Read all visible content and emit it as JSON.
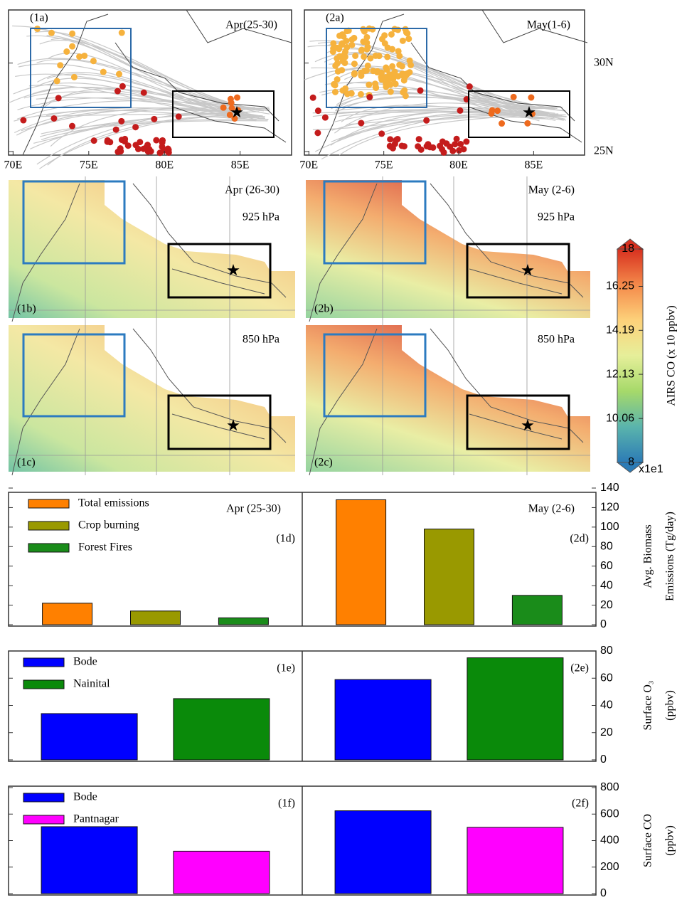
{
  "chart_data": [
    {
      "type": "map",
      "panels": [
        {
          "label": "(1a)",
          "period": "Apr(25-30)"
        },
        {
          "label": "(2a)",
          "period": "May(1-6)"
        }
      ],
      "xlim": [
        69.7,
        88.4
      ],
      "xticks": [
        {
          "value": 70,
          "label": "70E"
        },
        {
          "value": 75,
          "label": "75E"
        },
        {
          "value": 80,
          "label": "80E"
        },
        {
          "value": 85,
          "label": "85E"
        }
      ],
      "ylim": [
        24.8,
        33
      ],
      "yticks": [
        {
          "value": 30,
          "label": "30N"
        },
        {
          "value": 25,
          "label": "25N"
        }
      ]
    },
    {
      "type": "heatmap",
      "panels": [
        {
          "label": "(1b)",
          "period": "Apr (26-30)",
          "level": "925 hPa"
        },
        {
          "label": "(2b)",
          "period": "May (2-6)",
          "level": "925 hPa"
        }
      ]
    },
    {
      "type": "heatmap",
      "panels": [
        {
          "label": "(1c)",
          "level": "850 hPa"
        },
        {
          "label": "(2c)",
          "level": "850 hPa"
        }
      ]
    },
    {
      "type": "colorbar",
      "title": "AIRS CO (x 10 ppbv)",
      "multiplier": "x1e1",
      "lim": [
        8,
        18
      ],
      "ticks": [
        8,
        10.06,
        12.13,
        14.19,
        16.25,
        18
      ],
      "colors": [
        "#2c7bb6",
        "#5ab4ac",
        "#a6d96a",
        "#e6ef9a",
        "#fdd17a",
        "#f4894a",
        "#d7301f"
      ]
    },
    {
      "type": "bar",
      "categories": [
        "Apr (25-30)",
        "May (2-6)"
      ],
      "panel_labels": [
        "(1d)",
        "(2d)"
      ],
      "series": [
        {
          "name": "Total emissions",
          "color": "#ff8000",
          "values": [
            22,
            128
          ]
        },
        {
          "name": "Crop burning",
          "color": "#999900",
          "values": [
            14,
            98
          ]
        },
        {
          "name": "Forest Fires",
          "color": "#1a8c1a",
          "values": [
            7,
            30
          ]
        }
      ],
      "ylabel": [
        "Avg. Biomass",
        "Emissions (Tg/day)"
      ],
      "ylim": [
        0,
        140
      ],
      "yticks": [
        0,
        20,
        40,
        60,
        80,
        100,
        120,
        140
      ]
    },
    {
      "type": "bar",
      "panel_labels": [
        "(1e)",
        "(2e)"
      ],
      "series": [
        {
          "name": "Bode",
          "color": "#0000ff",
          "values": [
            34,
            59
          ]
        },
        {
          "name": "Nainital",
          "color": "#0a8a0a",
          "values": [
            45,
            75
          ]
        }
      ],
      "ylabel": [
        "Surface O₃",
        "(ppbv)"
      ],
      "ylim": [
        0,
        80
      ],
      "yticks": [
        0,
        20,
        40,
        60,
        80
      ]
    },
    {
      "type": "bar",
      "panel_labels": [
        "(1f)",
        "(2f)"
      ],
      "series": [
        {
          "name": "Bode",
          "color": "#0000ff",
          "values": [
            505,
            625
          ]
        },
        {
          "name": "Pantnagar",
          "color": "#ff00ff",
          "values": [
            320,
            500
          ]
        }
      ],
      "ylabel": [
        "Surface CO",
        "(ppbv)"
      ],
      "ylim": [
        0,
        800
      ],
      "yticks": [
        0,
        200,
        400,
        600,
        800
      ]
    }
  ]
}
